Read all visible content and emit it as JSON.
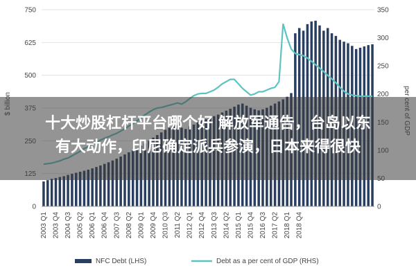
{
  "chart_data": {
    "type": "bar",
    "left_ylabel": "$ billion",
    "right_ylabel": "per cent of GDP",
    "left_ylim": [
      0,
      750
    ],
    "right_ylim": [
      0,
      350
    ],
    "left_ticks": [
      "0",
      "125",
      "250",
      "375",
      "500",
      "625",
      "750"
    ],
    "right_ticks": [
      "0",
      "50",
      "100",
      "150",
      "200",
      "250",
      "300",
      "350"
    ],
    "x_tick_labels": [
      "2003 Q1",
      "2003 Q4",
      "2004 Q3",
      "2005 Q2",
      "2006 Q1",
      "2006 Q4",
      "2007 Q3",
      "2008 Q2",
      "2009 Q1",
      "2009 Q4",
      "2010 Q3",
      "2011 Q2",
      "2012 Q1",
      "2012 Q4",
      "2013 Q3",
      "2014 Q2",
      "2015 Q1",
      "2015 Q4",
      "2016 Q3",
      "2017 Q2",
      "2018 Q1",
      "2018 Q4"
    ],
    "series": [
      {
        "name": "NFC Debt (LHS)",
        "type": "bar",
        "color": "#2a3f5f",
        "values": [
          95,
          100,
          105,
          108,
          112,
          115,
          120,
          124,
          128,
          132,
          136,
          140,
          145,
          150,
          156,
          162,
          168,
          175,
          182,
          190,
          198,
          206,
          214,
          222,
          232,
          240,
          250,
          262,
          272,
          282,
          292,
          300,
          306,
          310,
          300,
          295,
          305,
          312,
          320,
          326,
          332,
          338,
          344,
          350,
          358,
          365,
          372,
          380,
          388,
          392,
          384,
          376,
          370,
          366,
          370,
          376,
          384,
          392,
          400,
          408,
          418,
          432,
          660,
          680,
          670,
          695,
          705,
          708,
          690,
          670,
          680,
          660,
          650,
          635,
          628,
          622,
          612,
          600,
          605,
          610,
          615,
          618
        ]
      },
      {
        "name": "Debt as a per cent of GDP (RHS)",
        "type": "line",
        "color": "#5fc2c2",
        "values": [
          75,
          76,
          77,
          79,
          81,
          84,
          86,
          90,
          94,
          98,
          103,
          106,
          110,
          114,
          118,
          121,
          124,
          127,
          130,
          134,
          138,
          143,
          147,
          152,
          158,
          163,
          168,
          172,
          175,
          176,
          178,
          180,
          182,
          184,
          182,
          186,
          192,
          197,
          200,
          201,
          201,
          204,
          207,
          212,
          218,
          222,
          226,
          226,
          218,
          210,
          204,
          198,
          200,
          204,
          204,
          207,
          210,
          212,
          222,
          325,
          300,
          280,
          272,
          270,
          268,
          264,
          258,
          252,
          246,
          240,
          233,
          227,
          220,
          212,
          205,
          200,
          198,
          197,
          196,
          196,
          196,
          196
        ]
      }
    ]
  },
  "headline": {
    "line1": "十大炒股杠杆平台哪个好 解放军通告，台岛以东",
    "line2": "有大动作，印尼确定派兵参演，日本来得很快"
  }
}
